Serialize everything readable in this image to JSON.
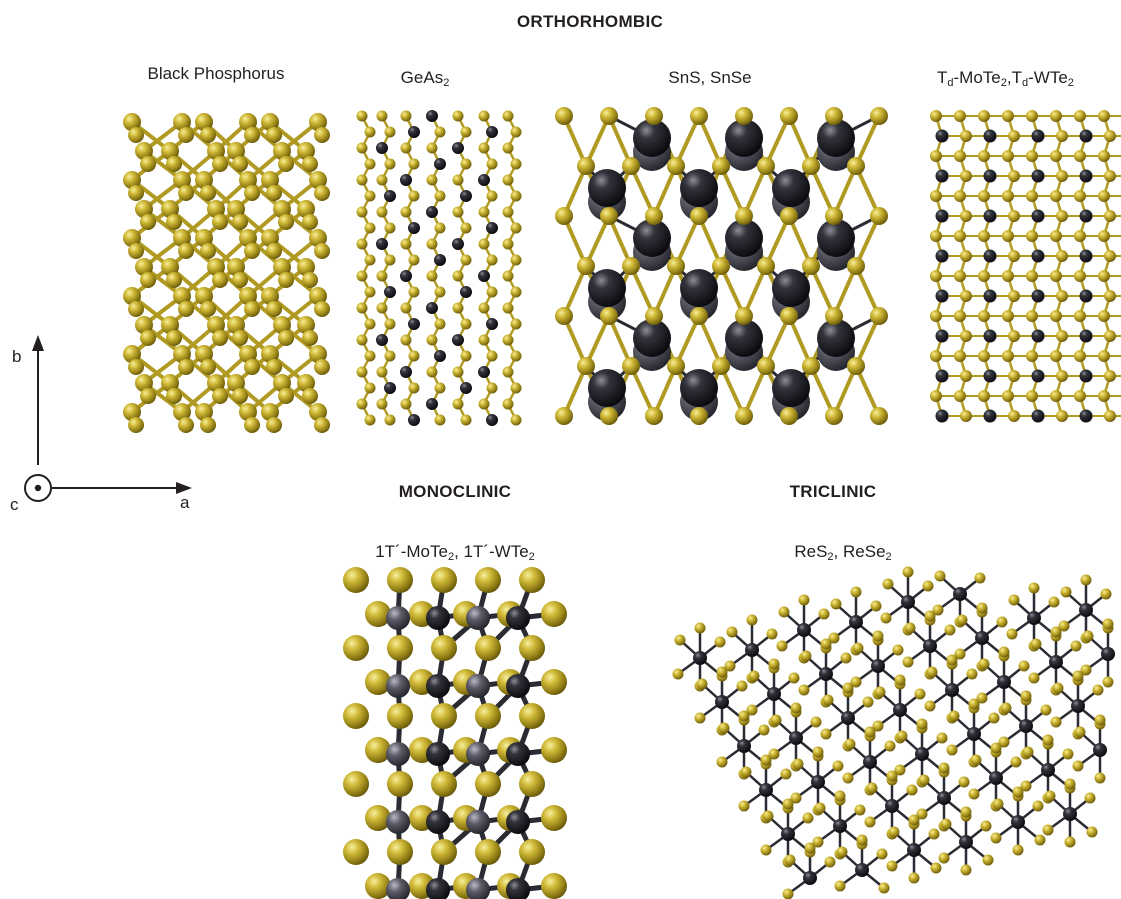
{
  "headers": {
    "orthorhombic": "ORTHORHOMBIC",
    "monoclinic": "MONOCLINIC",
    "triclinic": "TRICLINIC"
  },
  "structures": {
    "bp": {
      "name": "Black Phosphorus"
    },
    "geas2": {
      "name_main": "GeAs",
      "name_sub": "2"
    },
    "sns": {
      "name": "SnS, SnSe"
    },
    "td": {
      "t1": "T",
      "s1": "d",
      "t2": "-MoTe",
      "s2": "2",
      "t3": ",T",
      "s3": "d",
      "t4": "-WTe",
      "s4": "2"
    },
    "onet": {
      "t1": "1T´-MoTe",
      "s1": "2",
      "t2": ", 1T´-WTe",
      "s2": "2"
    },
    "res2": {
      "t1": "ReS",
      "s1": "2",
      "t2": ", ReSe",
      "s2": "2"
    }
  },
  "axes": {
    "b": "b",
    "a": "a",
    "c": "c"
  },
  "colors": {
    "chalcogen": "#b8a22a",
    "chalcogen_highlight": "#f4ea9a",
    "metal": "#1c1c22",
    "metal_highlight": "#9a9aa6",
    "metal_alt": "#4a4a55",
    "bond_gold": "#a8941f",
    "bond_dark": "#2a2a30"
  }
}
